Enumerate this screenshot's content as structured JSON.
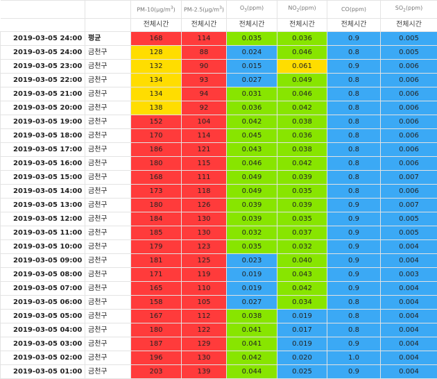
{
  "colors": {
    "red": "#ff3b3b",
    "yellow": "#ffdd00",
    "green": "#88e500",
    "blue": "#3ba9f5"
  },
  "header": {
    "pollutants": [
      {
        "base": "PM-10(μg/m",
        "sup": "3",
        "tail": ")"
      },
      {
        "base": "PM-2.5(μg/m",
        "sup": "3",
        "tail": ")"
      },
      {
        "base": "O",
        "sub": "3",
        "tail": "(ppm)"
      },
      {
        "base": "NO",
        "sub": "2",
        "tail": "(ppm)"
      },
      {
        "base": "CO(ppm)",
        "tail": ""
      },
      {
        "base": "SO",
        "sub": "2",
        "tail": "(ppm)"
      }
    ],
    "subheader": "전체시간"
  },
  "rows": [
    {
      "dt": "2019-03-05 24:00",
      "region": "평균",
      "avg": true,
      "vals": [
        "168",
        "114",
        "0.035",
        "0.036",
        "0.9",
        "0.005"
      ],
      "c": [
        "red",
        "red",
        "green",
        "green",
        "blue",
        "blue"
      ]
    },
    {
      "dt": "2019-03-05 24:00",
      "region": "금천구",
      "vals": [
        "128",
        "88",
        "0.024",
        "0.046",
        "0.8",
        "0.005"
      ],
      "c": [
        "yellow",
        "red",
        "blue",
        "green",
        "blue",
        "blue"
      ]
    },
    {
      "dt": "2019-03-05 23:00",
      "region": "금천구",
      "vals": [
        "132",
        "90",
        "0.015",
        "0.061",
        "0.9",
        "0.006"
      ],
      "c": [
        "yellow",
        "red",
        "blue",
        "yellow",
        "blue",
        "blue"
      ]
    },
    {
      "dt": "2019-03-05 22:00",
      "region": "금천구",
      "vals": [
        "134",
        "93",
        "0.027",
        "0.049",
        "0.8",
        "0.006"
      ],
      "c": [
        "yellow",
        "red",
        "blue",
        "green",
        "blue",
        "blue"
      ]
    },
    {
      "dt": "2019-03-05 21:00",
      "region": "금천구",
      "vals": [
        "134",
        "94",
        "0.031",
        "0.046",
        "0.8",
        "0.006"
      ],
      "c": [
        "yellow",
        "red",
        "green",
        "green",
        "blue",
        "blue"
      ]
    },
    {
      "dt": "2019-03-05 20:00",
      "region": "금천구",
      "vals": [
        "138",
        "92",
        "0.036",
        "0.042",
        "0.8",
        "0.006"
      ],
      "c": [
        "yellow",
        "red",
        "green",
        "green",
        "blue",
        "blue"
      ]
    },
    {
      "dt": "2019-03-05 19:00",
      "region": "금천구",
      "vals": [
        "152",
        "104",
        "0.042",
        "0.038",
        "0.8",
        "0.006"
      ],
      "c": [
        "red",
        "red",
        "green",
        "green",
        "blue",
        "blue"
      ]
    },
    {
      "dt": "2019-03-05 18:00",
      "region": "금천구",
      "vals": [
        "170",
        "114",
        "0.045",
        "0.036",
        "0.8",
        "0.006"
      ],
      "c": [
        "red",
        "red",
        "green",
        "green",
        "blue",
        "blue"
      ]
    },
    {
      "dt": "2019-03-05 17:00",
      "region": "금천구",
      "vals": [
        "186",
        "121",
        "0.043",
        "0.038",
        "0.8",
        "0.006"
      ],
      "c": [
        "red",
        "red",
        "green",
        "green",
        "blue",
        "blue"
      ]
    },
    {
      "dt": "2019-03-05 16:00",
      "region": "금천구",
      "vals": [
        "180",
        "115",
        "0.046",
        "0.042",
        "0.8",
        "0.006"
      ],
      "c": [
        "red",
        "red",
        "green",
        "green",
        "blue",
        "blue"
      ]
    },
    {
      "dt": "2019-03-05 15:00",
      "region": "금천구",
      "vals": [
        "168",
        "111",
        "0.049",
        "0.039",
        "0.8",
        "0.007"
      ],
      "c": [
        "red",
        "red",
        "green",
        "green",
        "blue",
        "blue"
      ]
    },
    {
      "dt": "2019-03-05 14:00",
      "region": "금천구",
      "vals": [
        "173",
        "118",
        "0.049",
        "0.035",
        "0.8",
        "0.006"
      ],
      "c": [
        "red",
        "red",
        "green",
        "green",
        "blue",
        "blue"
      ]
    },
    {
      "dt": "2019-03-05 13:00",
      "region": "금천구",
      "vals": [
        "180",
        "126",
        "0.039",
        "0.039",
        "0.9",
        "0.007"
      ],
      "c": [
        "red",
        "red",
        "green",
        "green",
        "blue",
        "blue"
      ]
    },
    {
      "dt": "2019-03-05 12:00",
      "region": "금천구",
      "vals": [
        "184",
        "130",
        "0.039",
        "0.035",
        "0.9",
        "0.005"
      ],
      "c": [
        "red",
        "red",
        "green",
        "green",
        "blue",
        "blue"
      ]
    },
    {
      "dt": "2019-03-05 11:00",
      "region": "금천구",
      "vals": [
        "185",
        "130",
        "0.032",
        "0.037",
        "0.9",
        "0.005"
      ],
      "c": [
        "red",
        "red",
        "green",
        "green",
        "blue",
        "blue"
      ]
    },
    {
      "dt": "2019-03-05 10:00",
      "region": "금천구",
      "vals": [
        "179",
        "123",
        "0.035",
        "0.032",
        "0.9",
        "0.004"
      ],
      "c": [
        "red",
        "red",
        "green",
        "green",
        "blue",
        "blue"
      ]
    },
    {
      "dt": "2019-03-05 09:00",
      "region": "금천구",
      "vals": [
        "181",
        "125",
        "0.023",
        "0.040",
        "0.9",
        "0.004"
      ],
      "c": [
        "red",
        "red",
        "blue",
        "green",
        "blue",
        "blue"
      ]
    },
    {
      "dt": "2019-03-05 08:00",
      "region": "금천구",
      "vals": [
        "171",
        "119",
        "0.019",
        "0.043",
        "0.9",
        "0.003"
      ],
      "c": [
        "red",
        "red",
        "blue",
        "green",
        "blue",
        "blue"
      ]
    },
    {
      "dt": "2019-03-05 07:00",
      "region": "금천구",
      "vals": [
        "165",
        "110",
        "0.019",
        "0.042",
        "0.9",
        "0.004"
      ],
      "c": [
        "red",
        "red",
        "blue",
        "green",
        "blue",
        "blue"
      ]
    },
    {
      "dt": "2019-03-05 06:00",
      "region": "금천구",
      "vals": [
        "158",
        "105",
        "0.027",
        "0.034",
        "0.8",
        "0.004"
      ],
      "c": [
        "red",
        "red",
        "blue",
        "green",
        "blue",
        "blue"
      ]
    },
    {
      "dt": "2019-03-05 05:00",
      "region": "금천구",
      "vals": [
        "167",
        "112",
        "0.038",
        "0.019",
        "0.8",
        "0.004"
      ],
      "c": [
        "red",
        "red",
        "green",
        "blue",
        "blue",
        "blue"
      ]
    },
    {
      "dt": "2019-03-05 04:00",
      "region": "금천구",
      "vals": [
        "180",
        "122",
        "0.041",
        "0.017",
        "0.8",
        "0.004"
      ],
      "c": [
        "red",
        "red",
        "green",
        "blue",
        "blue",
        "blue"
      ]
    },
    {
      "dt": "2019-03-05 03:00",
      "region": "금천구",
      "vals": [
        "187",
        "129",
        "0.041",
        "0.019",
        "0.9",
        "0.004"
      ],
      "c": [
        "red",
        "red",
        "green",
        "blue",
        "blue",
        "blue"
      ]
    },
    {
      "dt": "2019-03-05 02:00",
      "region": "금천구",
      "vals": [
        "196",
        "130",
        "0.042",
        "0.020",
        "1.0",
        "0.004"
      ],
      "c": [
        "red",
        "red",
        "green",
        "blue",
        "blue",
        "blue"
      ]
    },
    {
      "dt": "2019-03-05 01:00",
      "region": "금천구",
      "vals": [
        "203",
        "139",
        "0.044",
        "0.025",
        "0.9",
        "0.004"
      ],
      "c": [
        "red",
        "red",
        "green",
        "blue",
        "blue",
        "blue"
      ]
    }
  ]
}
